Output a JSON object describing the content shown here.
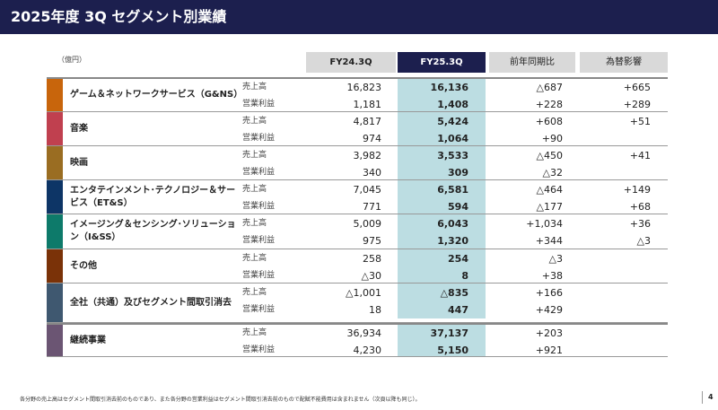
{
  "title": "2025年度 3Q セグメント別業績",
  "unit": "（億円）",
  "headers": [
    "FY24.3Q",
    "FY25.3Q",
    "前年同期比",
    "為替影響"
  ],
  "row_labels": [
    "売上高",
    "営業利益"
  ],
  "segments": [
    {
      "name": "ゲーム＆ネットワークサービス（G&NS）",
      "color": "#c8650c",
      "sales": [
        "16,823",
        "16,136",
        "△687",
        "+665"
      ],
      "op": [
        "1,181",
        "1,408",
        "+228",
        "+289"
      ]
    },
    {
      "name": "音楽",
      "color": "#c0404f",
      "sales": [
        "4,817",
        "5,424",
        "+608",
        "+51"
      ],
      "op": [
        "974",
        "1,064",
        "+90",
        ""
      ]
    },
    {
      "name": "映画",
      "color": "#9a6d22",
      "sales": [
        "3,982",
        "3,533",
        "△450",
        "+41"
      ],
      "op": [
        "340",
        "309",
        "△32",
        ""
      ]
    },
    {
      "name": "エンタテインメント･テクノロジー＆サービス（ET&S）",
      "color": "#0d3566",
      "sales": [
        "7,045",
        "6,581",
        "△464",
        "+149"
      ],
      "op": [
        "771",
        "594",
        "△177",
        "+68"
      ]
    },
    {
      "name": "イメージング＆センシング･ソリューション（I&SS）",
      "color": "#0d7a6a",
      "sales": [
        "5,009",
        "6,043",
        "+1,034",
        "+36"
      ],
      "op": [
        "975",
        "1,320",
        "+344",
        "△3"
      ]
    },
    {
      "name": "その他",
      "color": "#7a3208",
      "sales": [
        "258",
        "254",
        "△3",
        ""
      ],
      "op": [
        "△30",
        "8",
        "+38",
        ""
      ]
    },
    {
      "name": "全社（共通）及びセグメント間取引消去",
      "color": "#3f5870",
      "sales": [
        "△1,001",
        "△835",
        "+166",
        ""
      ],
      "op": [
        "18",
        "447",
        "+429",
        ""
      ]
    },
    {
      "name": "継続事業",
      "color": "#6b5573",
      "sales": [
        "36,934",
        "37,137",
        "+203",
        ""
      ],
      "op": [
        "4,230",
        "5,150",
        "+921",
        ""
      ]
    }
  ],
  "footnote": "各分野の売上高はセグメント間取引消去前のものであり、また各分野の営業利益はセグメント間取引消去前のもので配賦不能費用は含まれません（次頁以降も同じ）。",
  "page": "4"
}
